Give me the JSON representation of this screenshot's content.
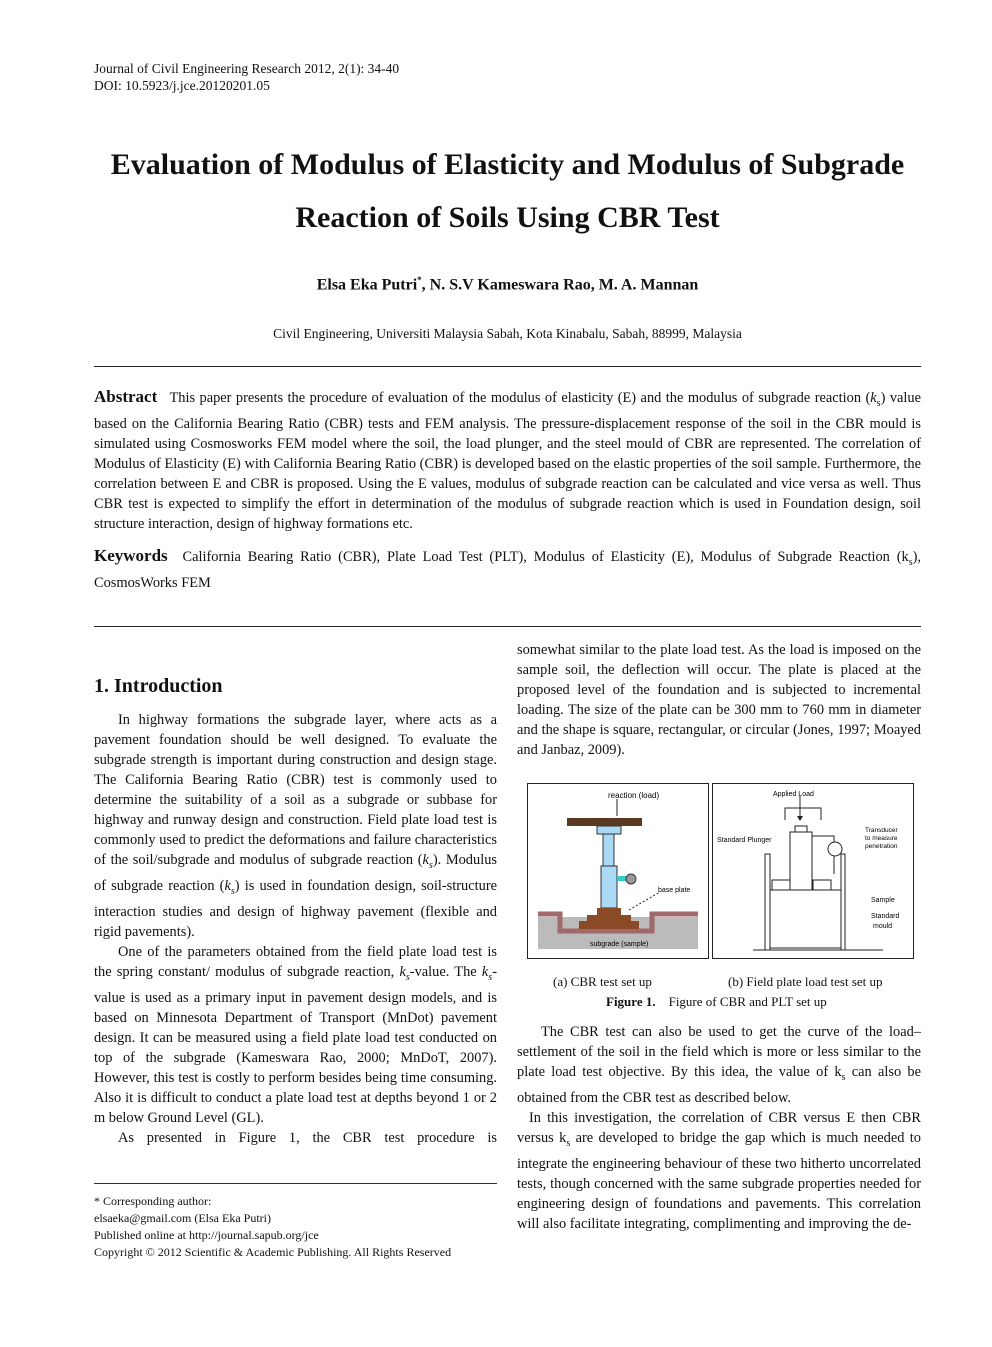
{
  "header": {
    "journal": "Journal of Civil Engineering Research 2012, 2(1): 34-40",
    "doi": "DOI: 10.5923/j.jce.20120201.05"
  },
  "title": "Evaluation of Modulus of Elasticity and Modulus of Subgrade Reaction of Soils Using CBR Test",
  "authors": {
    "first": "Elsa Eka Putri",
    "mark": "*",
    "rest": ", N. S.V Kameswara Rao, M. A. Mannan"
  },
  "affiliation": "Civil Engineering, Universiti Malaysia Sabah, Kota Kinabalu, Sabah, 88999, Malaysia",
  "abstract": {
    "label": "Abstract",
    "segs": [
      {
        "t": "This paper presents the procedure of evaluation of the modulus of elasticity (E) and the modulus of subgrade reaction ("
      },
      {
        "t": "k",
        "i": true
      },
      {
        "t": "s",
        "sub": true
      },
      {
        "t": ") value based on the California Bearing Ratio (CBR) tests and FEM analysis. The pressure-displacement response of the soil in the CBR mould is simulated using Cosmosworks FEM model where the soil, the load plunger, and the steel mould of CBR are represented. The correlation of Modulus of Elasticity (E) with California Bearing Ratio (CBR) is developed based on the elastic properties of the soil sample. Furthermore, the correlation between E and CBR is proposed. Using the E values, modulus of subgrade reaction can be calculated and vice versa as well. Thus CBR test is expected to simplify the effort in determination of the modulus of subgrade reaction which is used in Foundation design, soil structure interaction, design of highway formations etc."
      }
    ]
  },
  "keywords": {
    "label": "Keywords",
    "segs": [
      {
        "t": "California Bearing Ratio (CBR), Plate Load Test (PLT), Modulus of Elasticity (E), Modulus of Subgrade Reaction (k"
      },
      {
        "t": "s",
        "sub": true
      },
      {
        "t": "), CosmosWorks FEM"
      }
    ]
  },
  "intro": {
    "heading": "1. Introduction",
    "paragraphs": [
      [
        {
          "t": "In highway formations the subgrade layer, where acts as a pavement foundation should be well designed. To evaluate the subgrade strength is important during construction and design stage. The California Bearing Ratio (CBR) test is commonly used to determine the suitability of a soil as a subgrade or subbase for highway and runway design and construction. Field plate load test is commonly used to predict the deformations and failure characteristics of the soil/subgrade and modulus of subgrade reaction ("
        },
        {
          "t": "k",
          "i": true
        },
        {
          "t": "s",
          "sub": true,
          "i": true
        },
        {
          "t": "). Modulus of subgrade reaction ("
        },
        {
          "t": "k",
          "i": true
        },
        {
          "t": "s",
          "sub": true,
          "i": true
        },
        {
          "t": ") is used in foundation design, soil-structure interaction studies and design of highway pavement (flexible and rigid pavements)."
        }
      ],
      [
        {
          "t": "One of the parameters obtained from the field plate load test is the spring constant/ modulus of subgrade reaction, "
        },
        {
          "t": "k",
          "i": true
        },
        {
          "t": "s",
          "sub": true,
          "i": true
        },
        {
          "t": "-value. The "
        },
        {
          "t": "k",
          "i": true
        },
        {
          "t": "s",
          "sub": true,
          "i": true
        },
        {
          "t": "-value is used as a primary input in pavement design models, and is based on Minnesota Department of Transport (MnDot) pavement design. It can be measured using a field plate load test conducted on top of the subgrade (Kameswara Rao, 2000; MnDoT, 2007). However, this test is costly to perform besides being time consuming. Also it is difficult to conduct a plate load test at depths beyond 1 or 2 m below Ground Level (GL)."
        }
      ],
      [
        {
          "t": "As presented in Figure 1, the CBR test procedure is"
        }
      ]
    ]
  },
  "right": {
    "para_top": [
      {
        "t": "somewhat similar to the plate load test. As the load is imposed on the sample soil, the deflection will occur. The plate is placed at the proposed level of the foundation and is subjected to incremental loading. The size of the plate can be 300 mm to 760 mm in diameter and the shape is square, rectangular, or circular (Jones, 1997; Moayed and Janbaz, 2009)."
      }
    ],
    "paragraphs": [
      [
        {
          "t": "The CBR test can also be used to get the curve of the load–settlement of the soil in the field which is more or less similar to the plate load test objective. By this idea, the value of k"
        },
        {
          "t": "s",
          "sub": true
        },
        {
          "t": " can also be obtained from the CBR test as described below."
        }
      ],
      [
        {
          "t": "In this investigation, the correlation of CBR versus E then CBR versus k"
        },
        {
          "t": "s",
          "sub": true
        },
        {
          "t": " are developed to bridge the gap which is much needed to integrate the engineering behaviour of these two hitherto uncorrelated tests, though concerned with the same subgrade properties needed for engineering design of foundations and pavements. This correlation will also facilitate integrating, complimenting and improving the de-"
        }
      ]
    ]
  },
  "figure": {
    "a_labels": {
      "reaction": "reaction (load)",
      "plate": "base plate",
      "subgrade": "subgrade (sample)"
    },
    "b_labels": {
      "load": "Applied Load",
      "plunger": "Standard Plunger",
      "transducer": [
        "Transducer",
        "to measure",
        "penetration"
      ],
      "sample": "Sample",
      "mould": [
        "Standard",
        "mould"
      ]
    },
    "sub_a": "(a)      CBR test set up",
    "sub_b": "(b) Field plate load test set up",
    "caption_label": "Figure 1.",
    "caption": "Figure of CBR and PLT set up"
  },
  "footnote": {
    "lines": [
      "* Corresponding author:",
      "elsaeka@gmail.com (Elsa Eka Putri)",
      "Published online at http://journal.sapub.org/jce",
      "Copyright © 2012 Scientific & Academic Publishing. All Rights Reserved"
    ]
  }
}
